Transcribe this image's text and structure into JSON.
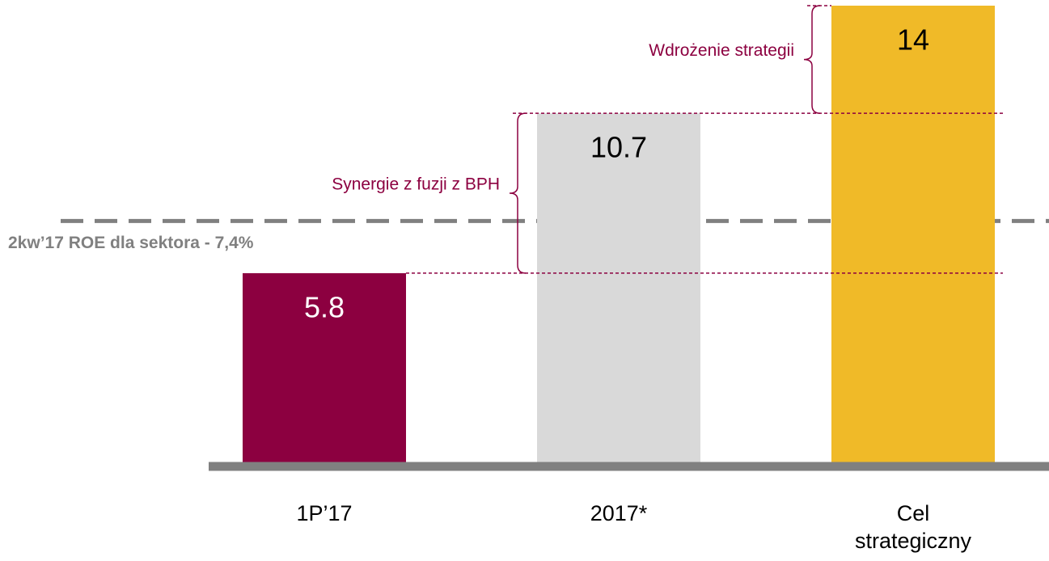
{
  "chart_data": {
    "type": "bar",
    "categories": [
      "1P’17",
      "2017*",
      "Cel strategiczny"
    ],
    "values": [
      5.8,
      10.7,
      14
    ],
    "colors": [
      "#8c0040",
      "#d9d9d9",
      "#f0ba28"
    ],
    "label_colors": [
      "#ffffff",
      "#000000",
      "#000000"
    ],
    "ylim": [
      0,
      14
    ],
    "reference_line": {
      "value": 7.4,
      "label": "2kw’17 ROE dla sektora  - 7,4%",
      "color": "#808080"
    },
    "annotations": [
      "Synergie z fuzji z BPH",
      "Wdrożenie strategii"
    ],
    "annotation_color": "#8c0040"
  }
}
